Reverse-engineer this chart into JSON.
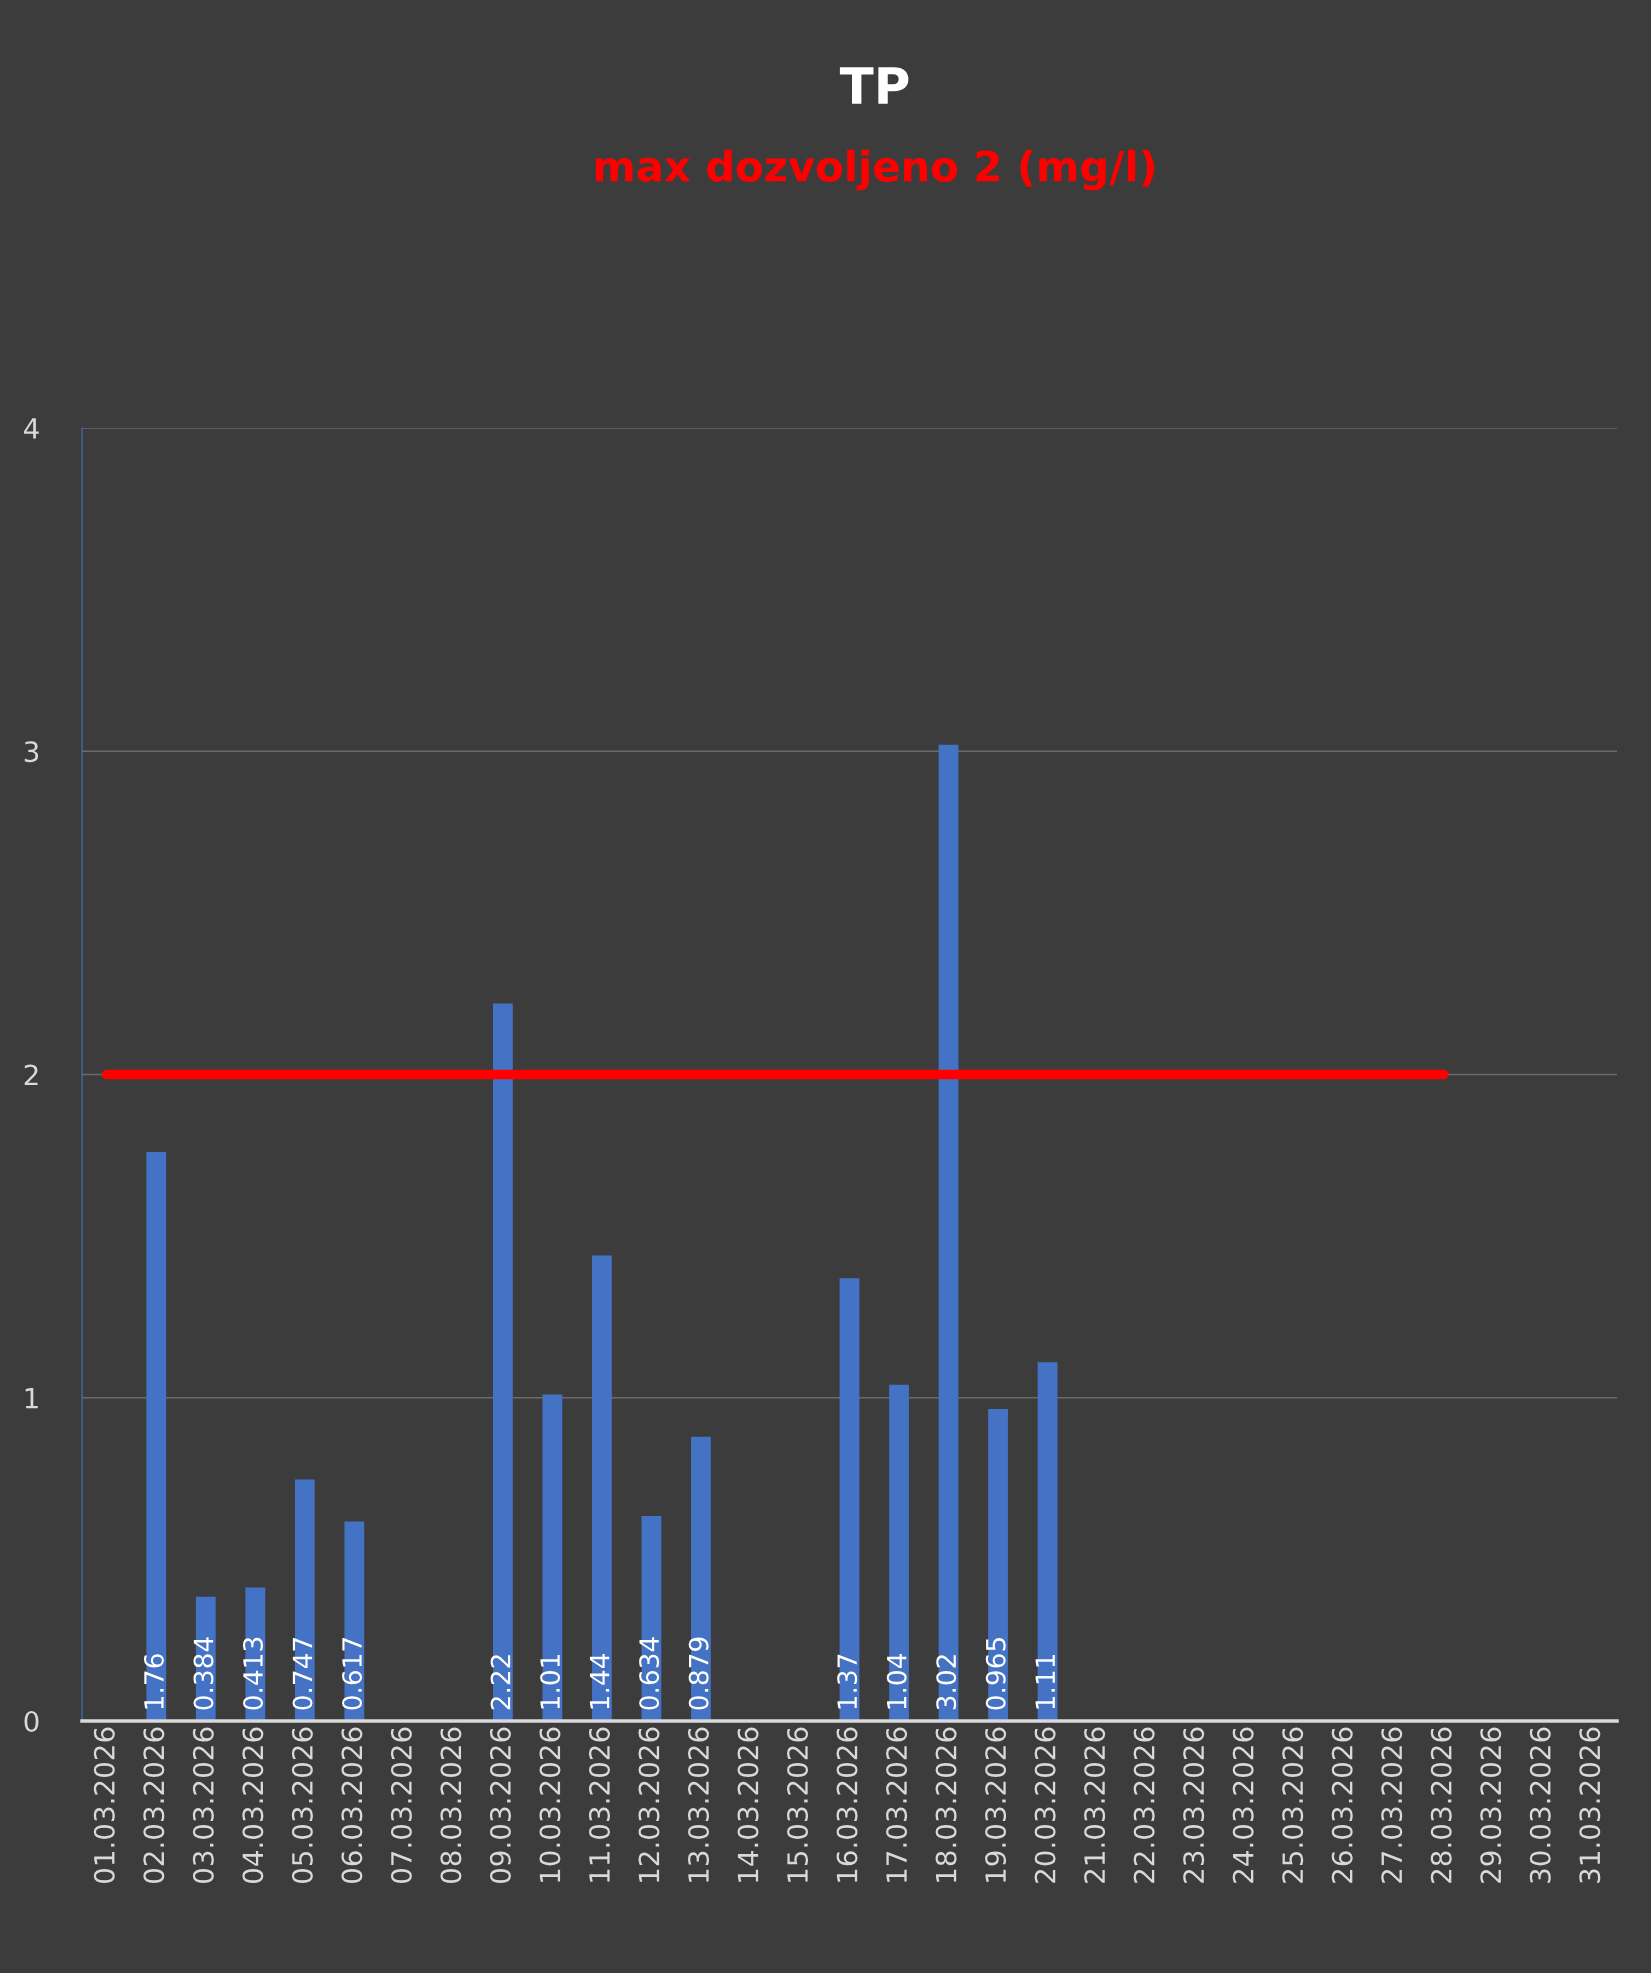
{
  "chart_data": {
    "type": "bar",
    "title": "TP",
    "subtitle": "max dozvoljeno 2 (mg/l)",
    "categories": [
      "01.03.2026",
      "02.03.2026",
      "03.03.2026",
      "04.03.2026",
      "05.03.2026",
      "06.03.2026",
      "07.03.2026",
      "08.03.2026",
      "09.03.2026",
      "10.03.2026",
      "11.03.2026",
      "12.03.2026",
      "13.03.2026",
      "14.03.2026",
      "15.03.2026",
      "16.03.2026",
      "17.03.2026",
      "18.03.2026",
      "19.03.2026",
      "20.03.2026",
      "21.03.2026",
      "22.03.2026",
      "23.03.2026",
      "24.03.2026",
      "25.03.2026",
      "26.03.2026",
      "27.03.2026",
      "28.03.2026",
      "29.03.2026",
      "30.03.2026",
      "31.03.2026"
    ],
    "series": [
      {
        "color": "#4472c4",
        "values": [
          null,
          1.76,
          0.384,
          0.413,
          0.747,
          0.617,
          null,
          null,
          2.22,
          1.01,
          1.44,
          0.634,
          0.879,
          null,
          null,
          1.37,
          1.04,
          3.02,
          0.965,
          1.11,
          null,
          null,
          null,
          null,
          null,
          null,
          null,
          null,
          null,
          null,
          null
        ],
        "value_labels": [
          null,
          "1.76",
          "0.384",
          "0.413",
          "0.747",
          "0.617",
          null,
          null,
          "2.22",
          "1.01",
          "1.44",
          "0.634",
          "0.879",
          null,
          null,
          "1.37",
          "1.04",
          "3.02",
          "0.965",
          "1.11",
          null,
          null,
          null,
          null,
          null,
          null,
          null,
          null,
          null,
          null,
          null
        ]
      },
      {
        "type": "line",
        "color": "#ff0000",
        "values": [
          2,
          2,
          2,
          2,
          2,
          2,
          2,
          2,
          2,
          2,
          2,
          2,
          2,
          2,
          2,
          2,
          2,
          2,
          2,
          2,
          2,
          2,
          2,
          2,
          2,
          2,
          2,
          2,
          null,
          null,
          null
        ]
      }
    ],
    "ylim": [
      0,
      4
    ],
    "yticks": [
      0,
      1,
      2,
      3,
      4
    ],
    "grid": "y"
  }
}
